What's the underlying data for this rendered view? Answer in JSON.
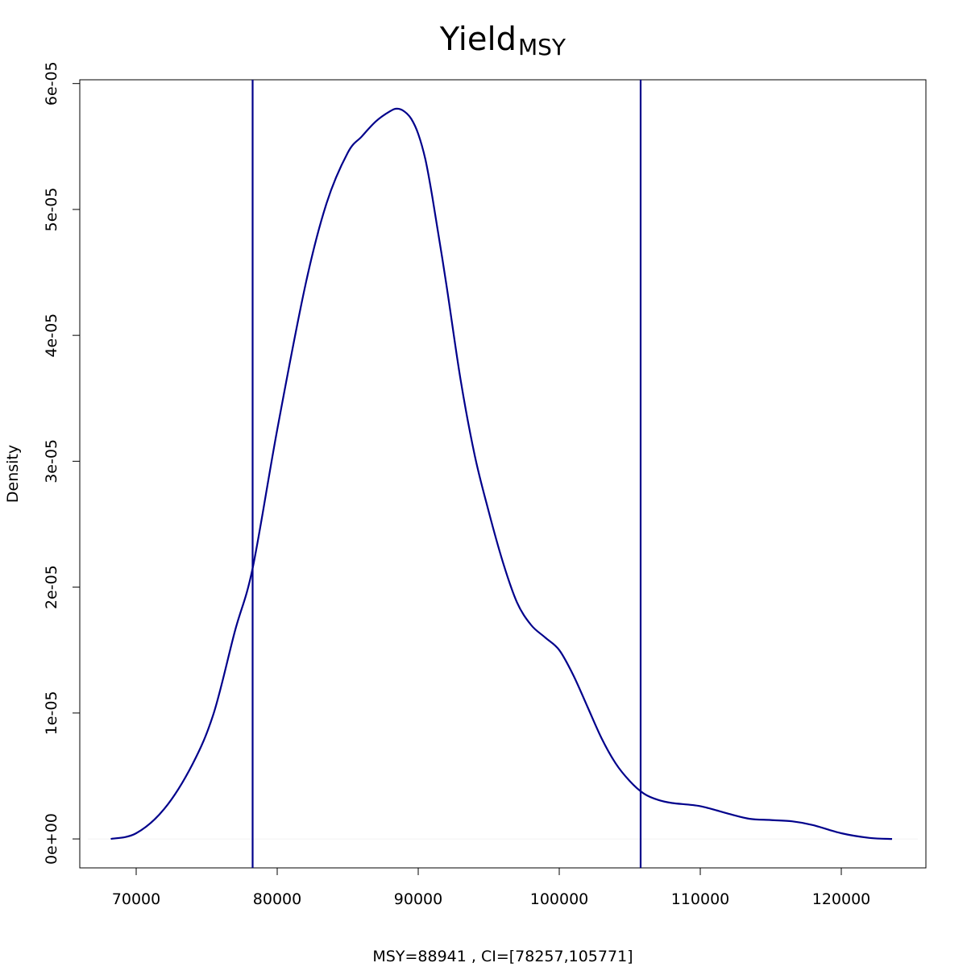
{
  "chart_data": {
    "type": "line",
    "title": "Yield",
    "title_subscript": "MSY",
    "xlabel": "MSY=88941 , CI=[78257,105771]",
    "ylabel": "Density",
    "xlim": [
      66000,
      126000
    ],
    "ylim": [
      -2.3e-06,
      6.03e-05
    ],
    "x_ticks": [
      70000,
      80000,
      90000,
      100000,
      110000,
      120000
    ],
    "x_tick_labels": [
      "70000",
      "80000",
      "90000",
      "100000",
      "110000",
      "120000"
    ],
    "y_ticks": [
      0,
      1e-05,
      2e-05,
      3e-05,
      4e-05,
      5e-05,
      6e-05
    ],
    "y_tick_labels": [
      "0e+00",
      "1e-05",
      "2e-05",
      "3e-05",
      "4e-05",
      "5e-05",
      "6e-05"
    ],
    "grid": false,
    "legend": "none",
    "series": [
      {
        "color": "#00008B",
        "x": [
          68200,
          70000,
          72000,
          74000,
          75500,
          77000,
          78257,
          80000,
          82000,
          83500,
          85000,
          86000,
          87000,
          88000,
          88500,
          89000,
          89500,
          90000,
          90500,
          91000,
          92000,
          93000,
          94000,
          95000,
          96000,
          97000,
          98000,
          99000,
          100000,
          101000,
          102000,
          103000,
          104000,
          105000,
          106000,
          107000,
          108000,
          110000,
          112000,
          113500,
          115000,
          116500,
          118000,
          120000,
          122000,
          123600
        ],
        "y": [
          0.0,
          4.5e-07,
          2.4e-06,
          5.95e-06,
          1e-05,
          1.65e-05,
          2.15e-05,
          3.25e-05,
          4.4e-05,
          5.05e-05,
          5.45e-05,
          5.58e-05,
          5.7e-05,
          5.78e-05,
          5.8e-05,
          5.78e-05,
          5.72e-05,
          5.6e-05,
          5.4e-05,
          5.1e-05,
          4.4e-05,
          3.65e-05,
          3.05e-05,
          2.6e-05,
          2.2e-05,
          1.88e-05,
          1.7e-05,
          1.6e-05,
          1.5e-05,
          1.3e-05,
          1.05e-05,
          8e-06,
          6e-06,
          4.6e-06,
          3.6e-06,
          3.1e-06,
          2.85e-06,
          2.6e-06,
          2e-06,
          1.6e-06,
          1.5e-06,
          1.4e-06,
          1.1e-06,
          4.5e-07,
          8e-08,
          0.0
        ]
      }
    ],
    "vlines": [
      {
        "x": 78257,
        "color": "#00008B"
      },
      {
        "x": 105771,
        "color": "#00008B"
      }
    ],
    "hline": {
      "y": 0,
      "color": "#F0F0F0"
    }
  }
}
